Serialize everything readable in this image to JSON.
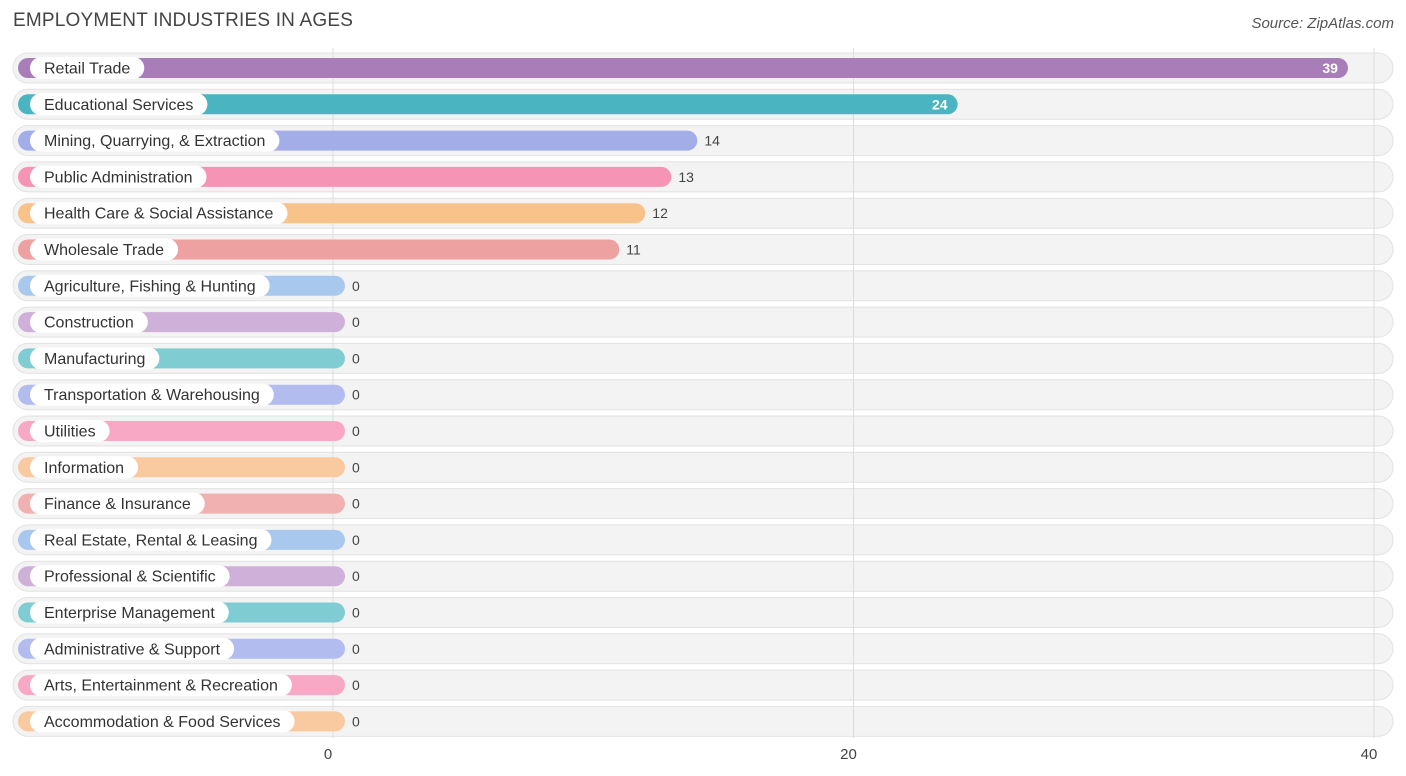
{
  "chart_data": {
    "type": "bar",
    "orientation": "horizontal",
    "title": "EMPLOYMENT INDUSTRIES IN AGES",
    "source": "Source: ZipAtlas.com",
    "xlim": [
      0,
      40
    ],
    "xticks": [
      0,
      20,
      40
    ],
    "grid": true,
    "categories": [
      "Retail Trade",
      "Educational Services",
      "Mining, Quarrying, & Extraction",
      "Public Administration",
      "Health Care & Social Assistance",
      "Wholesale Trade",
      "Agriculture, Fishing & Hunting",
      "Construction",
      "Manufacturing",
      "Transportation & Warehousing",
      "Utilities",
      "Information",
      "Finance & Insurance",
      "Real Estate, Rental & Leasing",
      "Professional & Scientific",
      "Enterprise Management",
      "Administrative & Support",
      "Arts, Entertainment & Recreation",
      "Accommodation & Food Services"
    ],
    "values": [
      39,
      24,
      14,
      13,
      12,
      11,
      0,
      0,
      0,
      0,
      0,
      0,
      0,
      0,
      0,
      0,
      0,
      0,
      0
    ],
    "colors": [
      "#a87db8",
      "#4ab5c1",
      "#a3aee8",
      "#f594b4",
      "#f9c28a",
      "#eea1a1",
      "#a9c8ee",
      "#cfb0d8",
      "#7fcdd3",
      "#b3bcee",
      "#f8a8c4",
      "#f9c9a0",
      "#f1b1b1",
      "#a9c8ee",
      "#cfb0d8",
      "#7fcdd3",
      "#b3bcee",
      "#f8a8c4",
      "#f9c9a0"
    ]
  }
}
